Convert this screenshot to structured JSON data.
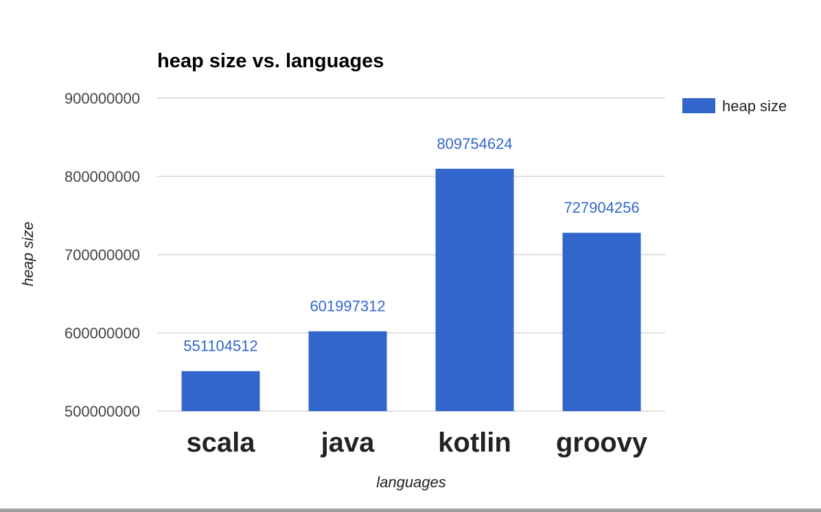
{
  "chart_data": {
    "type": "bar",
    "title": "heap size vs. languages",
    "xlabel": "languages",
    "ylabel": "heap size",
    "categories": [
      "scala",
      "java",
      "kotlin",
      "groovy"
    ],
    "series": [
      {
        "name": "heap size",
        "values": [
          551104512,
          601997312,
          809754624,
          727904256
        ]
      }
    ],
    "data_labels": [
      "551104512",
      "601997312",
      "809754624",
      "727904256"
    ],
    "yticks": [
      "500000000",
      "600000000",
      "700000000",
      "800000000",
      "900000000"
    ],
    "ylim": [
      500000000,
      900000000
    ],
    "grid": true,
    "legend": "right"
  },
  "colors": {
    "bar": "#3366cc",
    "data_label": "#3366cc",
    "gridline": "#cccccc"
  }
}
